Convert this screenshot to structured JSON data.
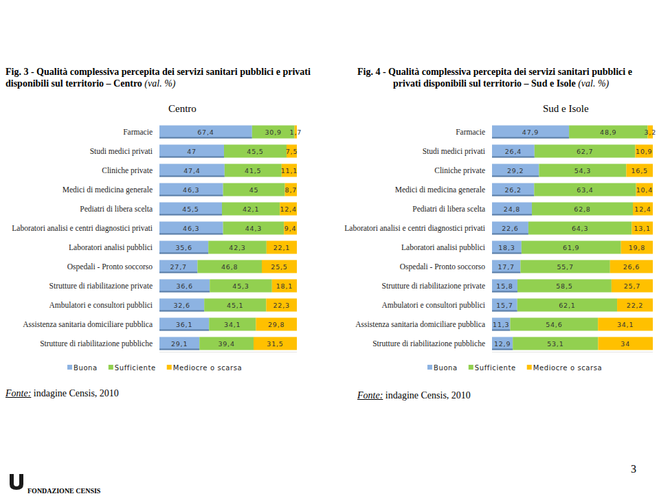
{
  "page": {
    "number": "3",
    "footer": "FONDAZIONE CENSIS"
  },
  "chart_data": [
    {
      "type": "bar",
      "title": "Fig. 3 - Qualità complessiva percepita dei servizi sanitari pubblici e privati disponibili sul territorio – Centro (val. %)",
      "subtitle": "Centro",
      "annotations": [
        "Fonte: indagine Censis, 2010"
      ],
      "orientation": "horizontal",
      "stacked": true,
      "data_labels": true,
      "legend": "bottom",
      "tick_labels": "y",
      "xlim": [
        0,
        100
      ],
      "categories": [
        "Farmacie",
        "Studi medici privati",
        "Cliniche private",
        "Medici di medicina generale",
        "Pediatri di libera scelta",
        "Laboratori analisi e centri diagnostici privati",
        "Laboratori analisi pubblici",
        "Ospedali - Pronto soccorso",
        "Strutture di riabilitazione private",
        "Ambulatori e consultori pubblici",
        "Assistenza sanitaria domiciliare pubblica",
        "Strutture di riabilitazione pubbliche"
      ],
      "series": [
        {
          "name": "Buona",
          "color": "#8db3e2",
          "values": [
            67.4,
            47,
            47.4,
            46.3,
            45.5,
            46.3,
            35.6,
            27.7,
            36.6,
            32.6,
            36.1,
            29.1
          ],
          "value_labels": [
            "67,4",
            "47",
            "47,4",
            "46,3",
            "45,5",
            "46,3",
            "35,6",
            "27,7",
            "36,6",
            "32,6",
            "36,1",
            "29,1"
          ]
        },
        {
          "name": "Sufficiente",
          "color": "#92d050",
          "values": [
            30.9,
            45.5,
            41.5,
            45,
            42.1,
            44.3,
            42.3,
            46.8,
            45.3,
            45.1,
            34.1,
            39.4
          ],
          "value_labels": [
            "30,9",
            "45,5",
            "41,5",
            "45",
            "42,1",
            "44,3",
            "42,3",
            "46,8",
            "45,3",
            "45,1",
            "34,1",
            "39,4"
          ]
        },
        {
          "name": "Mediocre o scarsa",
          "color": "#ffc000",
          "values": [
            1.7,
            7.5,
            11.1,
            8.7,
            12.4,
            9.4,
            22.1,
            25.5,
            18.1,
            22.3,
            29.8,
            31.5
          ],
          "value_labels": [
            "1,7",
            "7,5",
            "11,1",
            "8,7",
            "12,4",
            "9,4",
            "22,1",
            "25,5",
            "18,1",
            "22,3",
            "29,8",
            "31,5"
          ]
        }
      ]
    },
    {
      "type": "bar",
      "title": "Fig. 4 - Qualità complessiva percepita dei servizi sanitari pubblici e privati disponibili sul territorio – Sud e Isole (val. %)",
      "subtitle": "Sud e Isole",
      "annotations": [
        "Fonte: indagine Censis, 2010"
      ],
      "orientation": "horizontal",
      "stacked": true,
      "data_labels": true,
      "legend": "bottom",
      "tick_labels": "y",
      "xlim": [
        0,
        100
      ],
      "categories": [
        "Farmacie",
        "Studi medici privati",
        "Cliniche private",
        "Medici di medicina generale",
        "Pediatri di libera scelta",
        "Laboratori analisi e centri diagnostici privati",
        "Laboratori analisi pubblici",
        "Ospedali - Pronto soccorso",
        "Strutture di riabilitazione private",
        "Ambulatori e consultori pubblici",
        "Assistenza sanitaria domiciliare pubblica",
        "Strutture di riabilitazione pubbliche"
      ],
      "series": [
        {
          "name": "Buona",
          "color": "#8db3e2",
          "values": [
            47.9,
            26.4,
            29.2,
            26.2,
            24.8,
            22.6,
            18.3,
            17.7,
            15.8,
            15.7,
            11.3,
            12.9
          ],
          "value_labels": [
            "47,9",
            "26,4",
            "29,2",
            "26,2",
            "24,8",
            "22,6",
            "18,3",
            "17,7",
            "15,8",
            "15,7",
            "11,3",
            "12,9"
          ]
        },
        {
          "name": "Sufficiente",
          "color": "#92d050",
          "values": [
            48.9,
            62.7,
            54.3,
            63.4,
            62.8,
            64.3,
            61.9,
            55.7,
            58.5,
            62.1,
            54.6,
            53.1
          ],
          "value_labels": [
            "48,9",
            "62,7",
            "54,3",
            "63,4",
            "62,8",
            "64,3",
            "61,9",
            "55,7",
            "58,5",
            "62,1",
            "54,6",
            "53,1"
          ]
        },
        {
          "name": "Mediocre o scarsa",
          "color": "#ffc000",
          "values": [
            3.2,
            10.9,
            16.5,
            10.4,
            12.4,
            13.1,
            19.8,
            26.6,
            25.7,
            22.2,
            34.1,
            34
          ],
          "value_labels": [
            "3,2",
            "10,9",
            "16,5",
            "10,4",
            "12,4",
            "13,1",
            "19,8",
            "26,6",
            "25,7",
            "22,2",
            "34,1",
            "34"
          ]
        }
      ]
    }
  ]
}
